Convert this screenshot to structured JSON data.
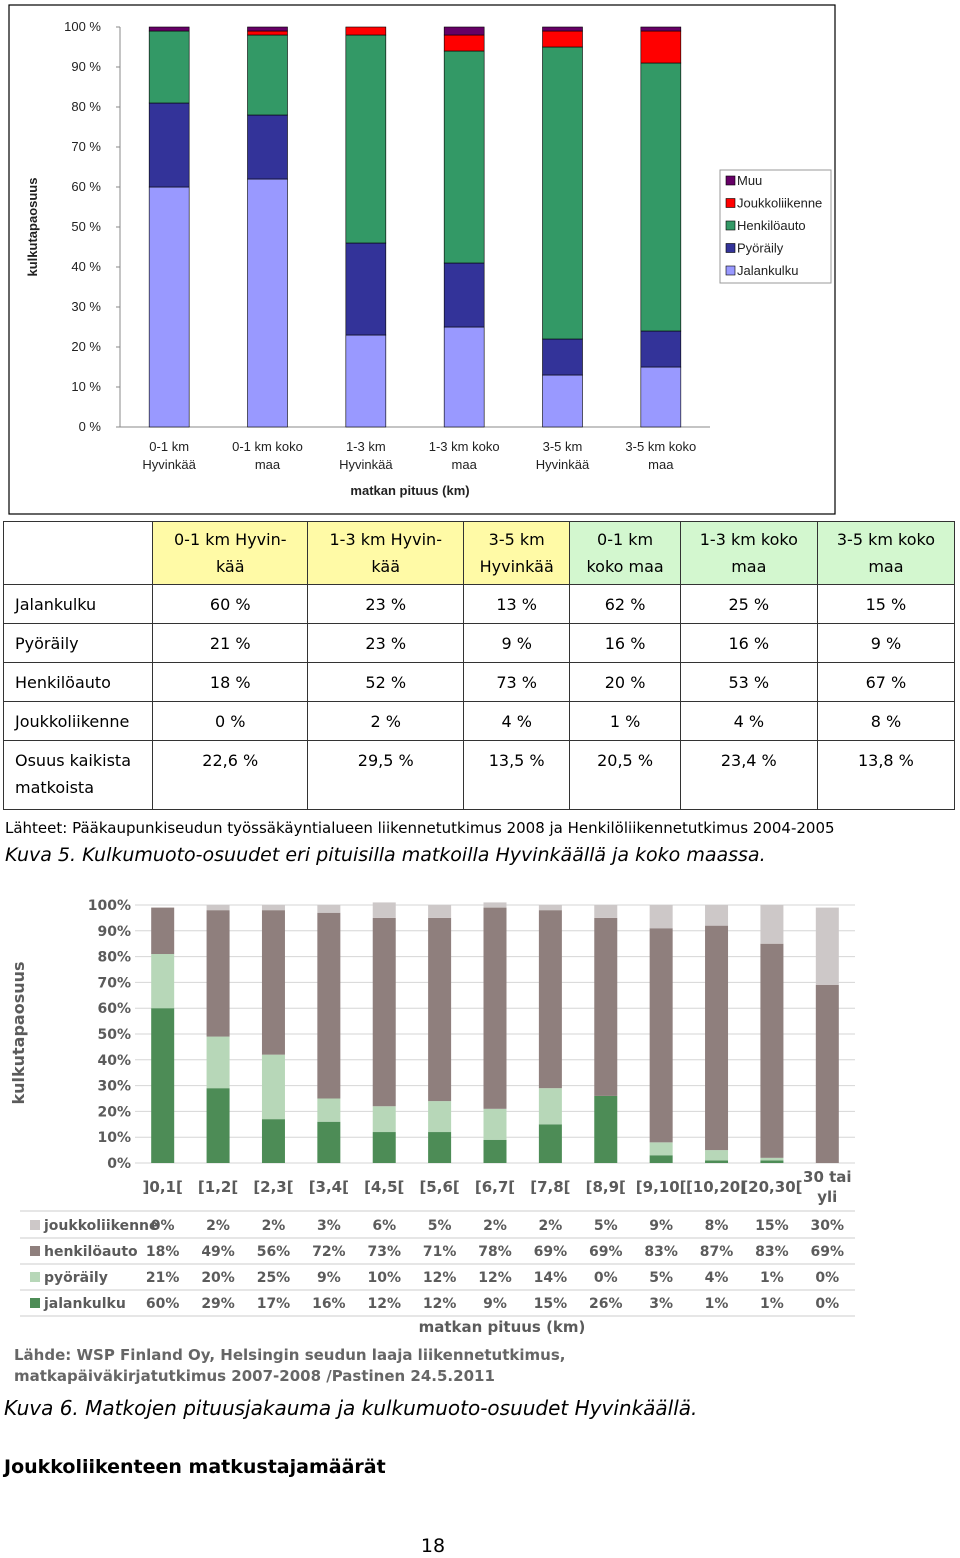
{
  "chart_data": [
    {
      "type": "bar",
      "stacked": true,
      "ylabel": "kulkutapaosuus",
      "xlabel": "matkan pituus (km)",
      "yticks": [
        "0 %",
        "10 %",
        "20 %",
        "30 %",
        "40 %",
        "50 %",
        "60 %",
        "70 %",
        "80 %",
        "90 %",
        "100 %"
      ],
      "ylim": [
        0,
        100
      ],
      "legend_position": "right",
      "categories": [
        [
          "0-1 km",
          "Hyvinkää"
        ],
        [
          "0-1 km koko",
          "maa"
        ],
        [
          "1-3 km",
          "Hyvinkää"
        ],
        [
          "1-3 km koko",
          "maa"
        ],
        [
          "3-5 km",
          "Hyvinkää"
        ],
        [
          "3-5 km koko",
          "maa"
        ]
      ],
      "series": [
        {
          "name": "Jalankulku",
          "color": "#9999ff",
          "values": [
            60,
            62,
            23,
            25,
            13,
            15
          ]
        },
        {
          "name": "Pyöräily",
          "color": "#333399",
          "values": [
            21,
            16,
            23,
            16,
            9,
            9
          ]
        },
        {
          "name": "Henkilöauto",
          "color": "#339966",
          "values": [
            18,
            20,
            52,
            53,
            73,
            67
          ]
        },
        {
          "name": "Joukkoliikenne",
          "color": "#ff0000",
          "values": [
            0,
            1,
            2,
            4,
            4,
            8
          ]
        },
        {
          "name": "Muu",
          "color": "#660066",
          "values": [
            1,
            1,
            0,
            2,
            1,
            1
          ]
        }
      ]
    },
    {
      "type": "bar",
      "stacked": true,
      "ylabel": "kulkutapaosuus",
      "xlabel": "matkan pituus (km)",
      "yticks": [
        "0%",
        "10%",
        "20%",
        "30%",
        "40%",
        "50%",
        "60%",
        "70%",
        "80%",
        "90%",
        "100%"
      ],
      "ylim": [
        0,
        100
      ],
      "categories": [
        [
          "]0,1["
        ],
        [
          "[1,2["
        ],
        [
          "[2,3["
        ],
        [
          "[3,4["
        ],
        [
          "[4,5["
        ],
        [
          "[5,6["
        ],
        [
          "[6,7["
        ],
        [
          "[7,8["
        ],
        [
          "[8,9["
        ],
        [
          "[9,10["
        ],
        [
          "[10,20["
        ],
        [
          "[20,30["
        ],
        [
          "30 tai",
          "yli"
        ]
      ],
      "series": [
        {
          "name": "jalankulku",
          "color": "#4d8c56",
          "values": [
            60,
            29,
            17,
            16,
            12,
            12,
            9,
            15,
            26,
            3,
            1,
            1,
            0
          ]
        },
        {
          "name": "pyöräily",
          "color": "#b7d7b8",
          "values": [
            21,
            20,
            25,
            9,
            10,
            12,
            12,
            14,
            0,
            5,
            4,
            1,
            0
          ]
        },
        {
          "name": "henkilöauto",
          "color": "#8f7f7d",
          "values": [
            18,
            49,
            56,
            72,
            73,
            71,
            78,
            69,
            69,
            83,
            87,
            83,
            69
          ]
        },
        {
          "name": "joukkoliikenne",
          "color": "#cdc8c8",
          "values": [
            0,
            2,
            2,
            3,
            6,
            5,
            2,
            2,
            5,
            9,
            8,
            15,
            30
          ]
        }
      ],
      "table": {
        "labels": [
          "joukkoliikenne",
          "henkilöauto",
          "pyöräily",
          "jalankulku"
        ],
        "rows": [
          [
            "0%",
            "2%",
            "2%",
            "3%",
            "6%",
            "5%",
            "2%",
            "2%",
            "5%",
            "9%",
            "8%",
            "15%",
            "30%"
          ],
          [
            "18%",
            "49%",
            "56%",
            "72%",
            "73%",
            "71%",
            "78%",
            "69%",
            "69%",
            "83%",
            "87%",
            "83%",
            "69%"
          ],
          [
            "21%",
            "20%",
            "25%",
            "9%",
            "10%",
            "12%",
            "12%",
            "14%",
            "0%",
            "5%",
            "4%",
            "1%",
            "0%"
          ],
          [
            "60%",
            "29%",
            "17%",
            "16%",
            "12%",
            "12%",
            "9%",
            "15%",
            "26%",
            "3%",
            "1%",
            "1%",
            "0%"
          ]
        ]
      }
    }
  ],
  "table1": {
    "header": [
      [
        "0-1 km Hyvin-",
        "kää"
      ],
      [
        "1-3 km Hyvin-",
        "kää"
      ],
      [
        "3-5 km",
        "Hyvinkää"
      ],
      [
        "0-1 km",
        "koko maa"
      ],
      [
        "1-3 km koko",
        "maa"
      ],
      [
        "3-5 km koko",
        "maa"
      ]
    ],
    "header_colors": [
      "yellow",
      "yellow",
      "yellow",
      "green",
      "green",
      "green"
    ],
    "rows": [
      {
        "label": "Jalankulku",
        "values": [
          "60 %",
          "23 %",
          "13 %",
          "62 %",
          "25 %",
          "15 %"
        ]
      },
      {
        "label": "Pyöräily",
        "values": [
          "21 %",
          "23 %",
          "9 %",
          "16 %",
          "16 %",
          "9 %"
        ]
      },
      {
        "label": "Henkilöauto",
        "values": [
          "18 %",
          "52 %",
          "73 %",
          "20 %",
          "53 %",
          "67 %"
        ]
      },
      {
        "label": "Joukkoliikenne",
        "values": [
          "0 %",
          "2 %",
          "4 %",
          "1 %",
          "4 %",
          "8 %"
        ]
      }
    ],
    "last_row": {
      "label": [
        "Osuus kaikista",
        "matkoista"
      ],
      "values": [
        "22,6 %",
        "29,5 %",
        "13,5 %",
        "20,5 %",
        "23,4 %",
        "13,8 %"
      ]
    }
  },
  "source1": "Lähteet: Pääkaupunkiseudun työssäkäyntialueen liikennetutkimus 2008 ja Henkilöliikennetutkimus 2004-2005",
  "caption5": "Kuva 5. Kulkumuoto-osuudet eri pituisilla matkoilla Hyvinkäällä ja koko maassa.",
  "source2_line1": "Lähde: WSP Finland Oy, Helsingin seudun laaja liikennetutkimus,",
  "source2_line2": "matkapäiväkirjatutkimus 2007-2008 /Pastinen 24.5.2011",
  "caption6": "Kuva 6. Matkojen pituusjakauma ja kulkumuoto-osuudet Hyvinkäällä.",
  "heading": "Joukkoliikenteen matkustajamäärät",
  "page_number": "18"
}
